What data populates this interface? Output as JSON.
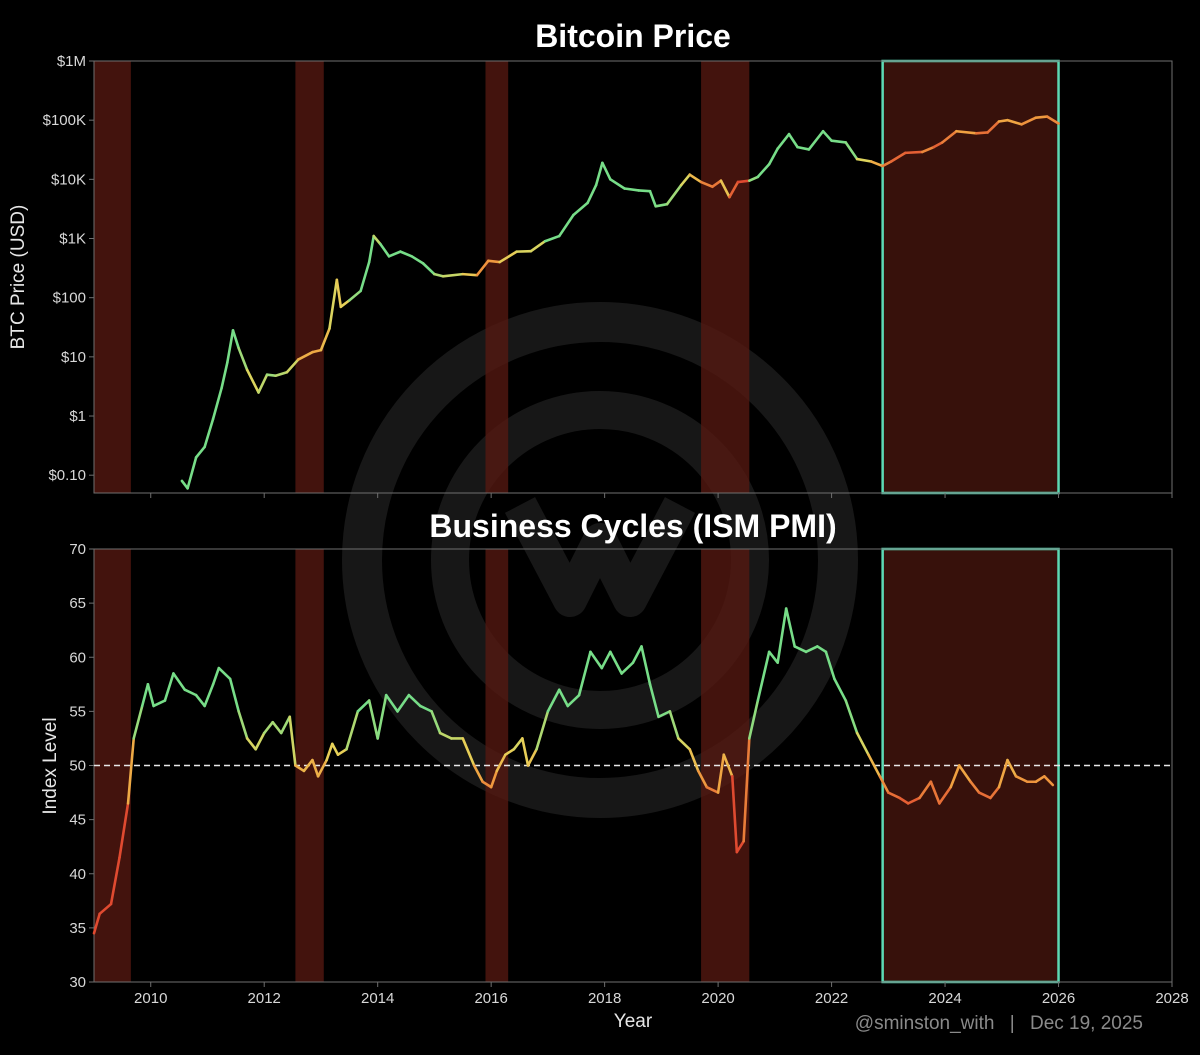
{
  "credit": {
    "handle": "@sminston_with",
    "separator": "|",
    "date": "Dec 19, 2025"
  },
  "colors": {
    "background": "#000000",
    "recession": "#5a1a12",
    "highlight_fill": "#3a120c",
    "highlight_border": "#63e6be",
    "axis": "#6f6f6f",
    "green": "#77dd88",
    "yellow": "#e6d35a",
    "orange": "#f0a040",
    "red": "#e04a30",
    "reference": "#e8e8e8"
  },
  "watermark": {
    "name": "logo-watermark"
  },
  "chart_data": [
    {
      "id": "price",
      "type": "line",
      "title": "Bitcoin Price",
      "xlabel": "",
      "ylabel": "BTC Price (USD)",
      "yscale": "log",
      "xlim": [
        2009,
        2028
      ],
      "ylim": [
        0.05,
        1000000
      ],
      "ytick_values": [
        0.1,
        1,
        10,
        100,
        1000,
        10000,
        100000,
        1000000
      ],
      "ytick_labels": [
        "$0.10",
        "$1",
        "$10",
        "$100",
        "$1K",
        "$10K",
        "$100K",
        "$1M"
      ],
      "xticks": [
        2010,
        2012,
        2014,
        2016,
        2018,
        2020,
        2022,
        2024,
        2026,
        2028
      ],
      "shaded_periods": [
        [
          2009.0,
          2009.65
        ],
        [
          2012.55,
          2013.05
        ],
        [
          2015.9,
          2016.3
        ],
        [
          2019.7,
          2020.55
        ]
      ],
      "highlight_period": [
        2022.9,
        2026.0
      ],
      "series": [
        {
          "name": "BTC Price",
          "points": [
            [
              2010.55,
              0.08
            ],
            [
              2010.65,
              0.06
            ],
            [
              2010.8,
              0.2
            ],
            [
              2010.95,
              0.3
            ],
            [
              2011.1,
              0.9
            ],
            [
              2011.25,
              3
            ],
            [
              2011.35,
              8
            ],
            [
              2011.45,
              28
            ],
            [
              2011.55,
              14
            ],
            [
              2011.7,
              6
            ],
            [
              2011.9,
              2.5
            ],
            [
              2012.05,
              5
            ],
            [
              2012.2,
              4.8
            ],
            [
              2012.4,
              5.5
            ],
            [
              2012.6,
              9
            ],
            [
              2012.85,
              12
            ],
            [
              2013.0,
              13
            ],
            [
              2013.15,
              30
            ],
            [
              2013.28,
              200
            ],
            [
              2013.35,
              70
            ],
            [
              2013.5,
              90
            ],
            [
              2013.7,
              130
            ],
            [
              2013.85,
              400
            ],
            [
              2013.93,
              1100
            ],
            [
              2014.05,
              800
            ],
            [
              2014.2,
              500
            ],
            [
              2014.4,
              600
            ],
            [
              2014.6,
              500
            ],
            [
              2014.8,
              380
            ],
            [
              2015.0,
              250
            ],
            [
              2015.15,
              230
            ],
            [
              2015.5,
              250
            ],
            [
              2015.75,
              240
            ],
            [
              2015.95,
              420
            ],
            [
              2016.15,
              400
            ],
            [
              2016.45,
              600
            ],
            [
              2016.7,
              610
            ],
            [
              2016.95,
              900
            ],
            [
              2017.2,
              1100
            ],
            [
              2017.45,
              2500
            ],
            [
              2017.7,
              4000
            ],
            [
              2017.85,
              8000
            ],
            [
              2017.96,
              19000
            ],
            [
              2018.1,
              10000
            ],
            [
              2018.35,
              7000
            ],
            [
              2018.6,
              6500
            ],
            [
              2018.8,
              6300
            ],
            [
              2018.9,
              3500
            ],
            [
              2019.1,
              3800
            ],
            [
              2019.35,
              8000
            ],
            [
              2019.5,
              12000
            ],
            [
              2019.7,
              9000
            ],
            [
              2019.9,
              7500
            ],
            [
              2020.05,
              9500
            ],
            [
              2020.2,
              5000
            ],
            [
              2020.35,
              9000
            ],
            [
              2020.55,
              9500
            ],
            [
              2020.7,
              11000
            ],
            [
              2020.9,
              18000
            ],
            [
              2021.05,
              33000
            ],
            [
              2021.25,
              58000
            ],
            [
              2021.4,
              35000
            ],
            [
              2021.6,
              32000
            ],
            [
              2021.85,
              65000
            ],
            [
              2022.0,
              45000
            ],
            [
              2022.25,
              42000
            ],
            [
              2022.45,
              22000
            ],
            [
              2022.7,
              20000
            ],
            [
              2022.9,
              16800
            ],
            [
              2023.05,
              20000
            ],
            [
              2023.3,
              28000
            ],
            [
              2023.6,
              29000
            ],
            [
              2023.8,
              35000
            ],
            [
              2023.95,
              42000
            ],
            [
              2024.2,
              65000
            ],
            [
              2024.55,
              60000
            ],
            [
              2024.75,
              62000
            ],
            [
              2024.95,
              95000
            ],
            [
              2025.1,
              100000
            ],
            [
              2025.35,
              85000
            ],
            [
              2025.6,
              110000
            ],
            [
              2025.8,
              115000
            ],
            [
              2026.0,
              88000
            ]
          ]
        }
      ]
    },
    {
      "id": "pmi",
      "type": "line",
      "title": "Business Cycles (ISM PMI)",
      "xlabel": "Year",
      "ylabel": "Index Level",
      "xlim": [
        2009,
        2028
      ],
      "ylim": [
        30,
        70
      ],
      "yticks": [
        30,
        35,
        40,
        45,
        50,
        55,
        60,
        65,
        70
      ],
      "xticks": [
        2010,
        2012,
        2014,
        2016,
        2018,
        2020,
        2022,
        2024,
        2026,
        2028
      ],
      "reference_line": 50,
      "shaded_periods": [
        [
          2009.0,
          2009.65
        ],
        [
          2012.55,
          2013.05
        ],
        [
          2015.9,
          2016.3
        ],
        [
          2019.7,
          2020.55
        ]
      ],
      "highlight_period": [
        2022.9,
        2026.0
      ],
      "series": [
        {
          "name": "ISM PMI",
          "points": [
            [
              2009.0,
              34.5
            ],
            [
              2009.1,
              36.3
            ],
            [
              2009.3,
              37.2
            ],
            [
              2009.45,
              41.5
            ],
            [
              2009.6,
              46.5
            ],
            [
              2009.7,
              52.5
            ],
            [
              2009.85,
              55.5
            ],
            [
              2009.95,
              57.5
            ],
            [
              2010.05,
              55.5
            ],
            [
              2010.25,
              56.0
            ],
            [
              2010.4,
              58.5
            ],
            [
              2010.6,
              57.0
            ],
            [
              2010.8,
              56.5
            ],
            [
              2010.95,
              55.5
            ],
            [
              2011.1,
              57.5
            ],
            [
              2011.2,
              59.0
            ],
            [
              2011.4,
              58.0
            ],
            [
              2011.55,
              55.0
            ],
            [
              2011.7,
              52.5
            ],
            [
              2011.85,
              51.5
            ],
            [
              2012.0,
              53.0
            ],
            [
              2012.15,
              54.0
            ],
            [
              2012.3,
              53.0
            ],
            [
              2012.45,
              54.5
            ],
            [
              2012.55,
              50.0
            ],
            [
              2012.7,
              49.5
            ],
            [
              2012.85,
              50.5
            ],
            [
              2012.95,
              49.0
            ],
            [
              2013.1,
              50.5
            ],
            [
              2013.2,
              52.0
            ],
            [
              2013.3,
              51.0
            ],
            [
              2013.45,
              51.5
            ],
            [
              2013.65,
              55.0
            ],
            [
              2013.85,
              56.0
            ],
            [
              2014.0,
              52.5
            ],
            [
              2014.15,
              56.5
            ],
            [
              2014.35,
              55.0
            ],
            [
              2014.55,
              56.5
            ],
            [
              2014.75,
              55.5
            ],
            [
              2014.95,
              55.0
            ],
            [
              2015.1,
              53.0
            ],
            [
              2015.3,
              52.5
            ],
            [
              2015.5,
              52.5
            ],
            [
              2015.7,
              50.0
            ],
            [
              2015.85,
              48.5
            ],
            [
              2016.0,
              48.0
            ],
            [
              2016.1,
              49.5
            ],
            [
              2016.25,
              51.0
            ],
            [
              2016.4,
              51.5
            ],
            [
              2016.55,
              52.5
            ],
            [
              2016.65,
              50.0
            ],
            [
              2016.8,
              51.5
            ],
            [
              2017.0,
              55.0
            ],
            [
              2017.2,
              57.0
            ],
            [
              2017.35,
              55.5
            ],
            [
              2017.55,
              56.5
            ],
            [
              2017.75,
              60.5
            ],
            [
              2017.95,
              59.0
            ],
            [
              2018.1,
              60.5
            ],
            [
              2018.3,
              58.5
            ],
            [
              2018.5,
              59.5
            ],
            [
              2018.65,
              61.0
            ],
            [
              2018.8,
              57.5
            ],
            [
              2018.95,
              54.5
            ],
            [
              2019.15,
              55.0
            ],
            [
              2019.3,
              52.5
            ],
            [
              2019.5,
              51.5
            ],
            [
              2019.65,
              49.5
            ],
            [
              2019.8,
              48.0
            ],
            [
              2020.0,
              47.5
            ],
            [
              2020.1,
              51.0
            ],
            [
              2020.25,
              49.0
            ],
            [
              2020.33,
              42.0
            ],
            [
              2020.45,
              43.0
            ],
            [
              2020.55,
              52.5
            ],
            [
              2020.7,
              56.0
            ],
            [
              2020.9,
              60.5
            ],
            [
              2021.05,
              59.5
            ],
            [
              2021.2,
              64.5
            ],
            [
              2021.35,
              61.0
            ],
            [
              2021.55,
              60.5
            ],
            [
              2021.75,
              61.0
            ],
            [
              2021.9,
              60.5
            ],
            [
              2022.05,
              58.0
            ],
            [
              2022.25,
              56.0
            ],
            [
              2022.45,
              53.0
            ],
            [
              2022.65,
              51.0
            ],
            [
              2022.85,
              49.0
            ],
            [
              2023.0,
              47.5
            ],
            [
              2023.2,
              47.0
            ],
            [
              2023.35,
              46.5
            ],
            [
              2023.55,
              47.0
            ],
            [
              2023.75,
              48.5
            ],
            [
              2023.9,
              46.5
            ],
            [
              2024.1,
              48.0
            ],
            [
              2024.25,
              50.0
            ],
            [
              2024.45,
              48.5
            ],
            [
              2024.6,
              47.5
            ],
            [
              2024.8,
              47.0
            ],
            [
              2024.95,
              48.0
            ],
            [
              2025.1,
              50.5
            ],
            [
              2025.25,
              49.0
            ],
            [
              2025.45,
              48.5
            ],
            [
              2025.6,
              48.5
            ],
            [
              2025.75,
              49.0
            ],
            [
              2025.9,
              48.2
            ]
          ]
        }
      ]
    }
  ]
}
